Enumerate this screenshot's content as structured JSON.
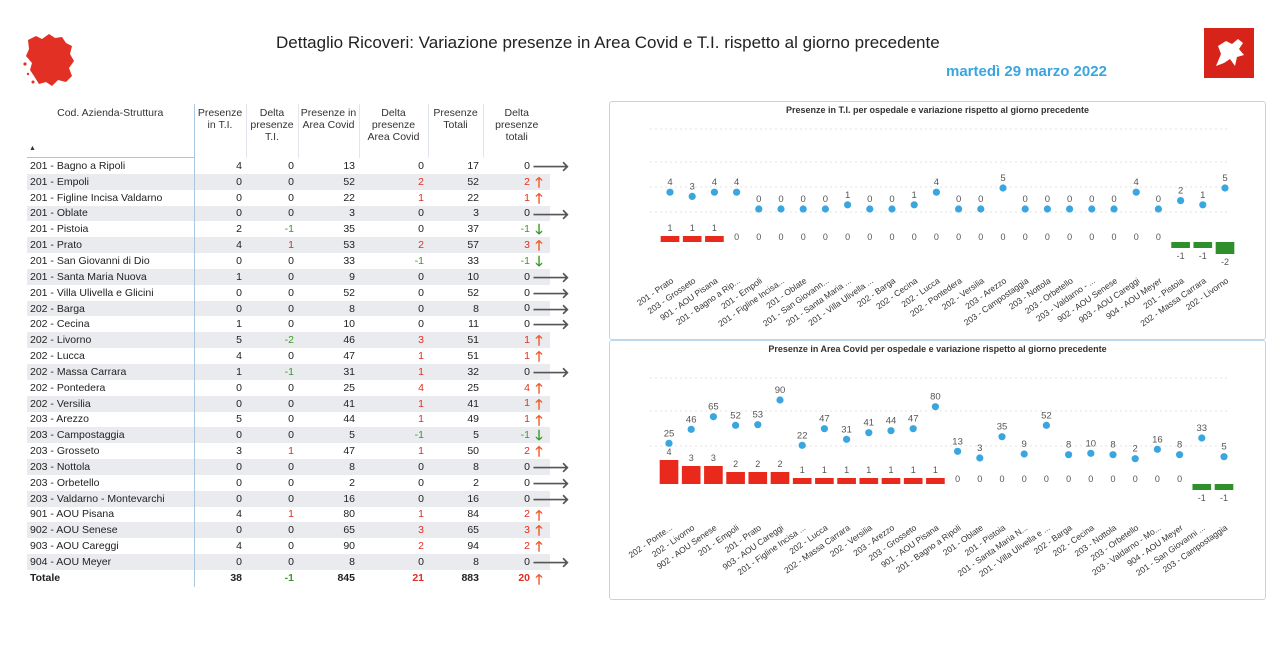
{
  "header": {
    "title": "Dettaglio Ricoveri: Variazione presenze in Area Covid e T.I. rispetto al giorno precedente",
    "date": "martedì 29 marzo 2022"
  },
  "table": {
    "columns": [
      "Cod. Azienda-Struttura",
      "Presenze in T.I.",
      "Delta presenze T.I.",
      "Presenze in Area Covid",
      "Delta presenze Area Covid",
      "Presenze Totali",
      "Delta presenze totali"
    ],
    "rows": [
      {
        "name": "201 - Bagno a Ripoli",
        "ti": "4",
        "dti": "0",
        "ac": "13",
        "dac": "0",
        "tot": "17",
        "dtot": "0",
        "dir": "right"
      },
      {
        "name": "201 - Empoli",
        "ti": "0",
        "dti": "0",
        "ac": "52",
        "dac": "2",
        "tot": "52",
        "dtot": "2",
        "dir": "up"
      },
      {
        "name": "201 - Figline Incisa Valdarno",
        "ti": "0",
        "dti": "0",
        "ac": "22",
        "dac": "1",
        "tot": "22",
        "dtot": "1",
        "dir": "up"
      },
      {
        "name": "201 - Oblate",
        "ti": "0",
        "dti": "0",
        "ac": "3",
        "dac": "0",
        "tot": "3",
        "dtot": "0",
        "dir": "right"
      },
      {
        "name": "201 - Pistoia",
        "ti": "2",
        "dti": "-1",
        "ac": "35",
        "dac": "0",
        "tot": "37",
        "dtot": "-1",
        "dir": "down"
      },
      {
        "name": "201 - Prato",
        "ti": "4",
        "dti": "1",
        "ac": "53",
        "dac": "2",
        "tot": "57",
        "dtot": "3",
        "dir": "up"
      },
      {
        "name": "201 - San Giovanni di Dio",
        "ti": "0",
        "dti": "0",
        "ac": "33",
        "dac": "-1",
        "tot": "33",
        "dtot": "-1",
        "dir": "down"
      },
      {
        "name": "201 - Santa Maria Nuova",
        "ti": "1",
        "dti": "0",
        "ac": "9",
        "dac": "0",
        "tot": "10",
        "dtot": "0",
        "dir": "right"
      },
      {
        "name": "201 - Villa Ulivella e Glicini",
        "ti": "0",
        "dti": "0",
        "ac": "52",
        "dac": "0",
        "tot": "52",
        "dtot": "0",
        "dir": "right"
      },
      {
        "name": "202 - Barga",
        "ti": "0",
        "dti": "0",
        "ac": "8",
        "dac": "0",
        "tot": "8",
        "dtot": "0",
        "dir": "right"
      },
      {
        "name": "202 - Cecina",
        "ti": "1",
        "dti": "0",
        "ac": "10",
        "dac": "0",
        "tot": "11",
        "dtot": "0",
        "dir": "right"
      },
      {
        "name": "202 - Livorno",
        "ti": "5",
        "dti": "-2",
        "ac": "46",
        "dac": "3",
        "tot": "51",
        "dtot": "1",
        "dir": "up"
      },
      {
        "name": "202 - Lucca",
        "ti": "4",
        "dti": "0",
        "ac": "47",
        "dac": "1",
        "tot": "51",
        "dtot": "1",
        "dir": "up"
      },
      {
        "name": "202 - Massa Carrara",
        "ti": "1",
        "dti": "-1",
        "ac": "31",
        "dac": "1",
        "tot": "32",
        "dtot": "0",
        "dir": "right"
      },
      {
        "name": "202 - Pontedera",
        "ti": "0",
        "dti": "0",
        "ac": "25",
        "dac": "4",
        "tot": "25",
        "dtot": "4",
        "dir": "up"
      },
      {
        "name": "202 - Versilia",
        "ti": "0",
        "dti": "0",
        "ac": "41",
        "dac": "1",
        "tot": "41",
        "dtot": "1",
        "dir": "up"
      },
      {
        "name": "203 - Arezzo",
        "ti": "5",
        "dti": "0",
        "ac": "44",
        "dac": "1",
        "tot": "49",
        "dtot": "1",
        "dir": "up"
      },
      {
        "name": "203 - Campostaggia",
        "ti": "0",
        "dti": "0",
        "ac": "5",
        "dac": "-1",
        "tot": "5",
        "dtot": "-1",
        "dir": "down"
      },
      {
        "name": "203 - Grosseto",
        "ti": "3",
        "dti": "1",
        "ac": "47",
        "dac": "1",
        "tot": "50",
        "dtot": "2",
        "dir": "up"
      },
      {
        "name": "203 - Nottola",
        "ti": "0",
        "dti": "0",
        "ac": "8",
        "dac": "0",
        "tot": "8",
        "dtot": "0",
        "dir": "right"
      },
      {
        "name": "203 - Orbetello",
        "ti": "0",
        "dti": "0",
        "ac": "2",
        "dac": "0",
        "tot": "2",
        "dtot": "0",
        "dir": "right"
      },
      {
        "name": "203 - Valdarno - Montevarchi",
        "ti": "0",
        "dti": "0",
        "ac": "16",
        "dac": "0",
        "tot": "16",
        "dtot": "0",
        "dir": "right"
      },
      {
        "name": "901 - AOU Pisana",
        "ti": "4",
        "dti": "1",
        "ac": "80",
        "dac": "1",
        "tot": "84",
        "dtot": "2",
        "dir": "up"
      },
      {
        "name": "902 - AOU Senese",
        "ti": "0",
        "dti": "0",
        "ac": "65",
        "dac": "3",
        "tot": "65",
        "dtot": "3",
        "dir": "up"
      },
      {
        "name": "903 - AOU Careggi",
        "ti": "4",
        "dti": "0",
        "ac": "90",
        "dac": "2",
        "tot": "94",
        "dtot": "2",
        "dir": "up"
      },
      {
        "name": "904 - AOU Meyer",
        "ti": "0",
        "dti": "0",
        "ac": "8",
        "dac": "0",
        "tot": "8",
        "dtot": "0",
        "dir": "right"
      }
    ],
    "total": {
      "name": "Totale",
      "ti": "38",
      "dti": "-1",
      "ac": "845",
      "dac": "21",
      "tot": "883",
      "dtot": "20",
      "dir": "up"
    }
  },
  "colors": {
    "positive": "#e8291c",
    "negative": "#2f8f2a",
    "dot": "#3aa6e0",
    "date": "#3aa6dd"
  },
  "chart_data": [
    {
      "type": "bar",
      "title": "Presenze in T.I. per ospedale e variazione rispetto al giorno precedente",
      "categories": [
        "201 - Prato",
        "203 - Grosseto",
        "901 - AOU Pisana",
        "201 - Bagno a Rip...",
        "201 - Empoli",
        "201 - Figline Incisa...",
        "201 - Oblate",
        "201 - San Giovann...",
        "201 - Santa Maria ...",
        "201 - Villa Ulivella ...",
        "202 - Barga",
        "202 - Cecina",
        "202 - Lucca",
        "202 - Pontedera",
        "202 - Versilia",
        "203 - Arezzo",
        "203 - Campostaggia",
        "203 - Nottola",
        "203 - Orbetello",
        "203 - Valdarno - ...",
        "902 - AOU Senese",
        "903 - AOU Careggi",
        "904 - AOU Meyer",
        "201 - Pistoia",
        "202 - Massa Carrara",
        "202 - Livorno"
      ],
      "series": [
        {
          "name": "Presenze",
          "kind": "scatter",
          "values": [
            4,
            3,
            4,
            4,
            0,
            0,
            0,
            0,
            1,
            0,
            0,
            1,
            4,
            0,
            0,
            5,
            0,
            0,
            0,
            0,
            0,
            4,
            0,
            2,
            1,
            5
          ]
        },
        {
          "name": "Variazione",
          "kind": "bar",
          "values": [
            1,
            1,
            1,
            0,
            0,
            0,
            0,
            0,
            0,
            0,
            0,
            0,
            0,
            0,
            0,
            0,
            0,
            0,
            0,
            0,
            0,
            0,
            0,
            -1,
            -1,
            -2
          ]
        }
      ]
    },
    {
      "type": "bar",
      "title": "Presenze in Area Covid per ospedale e variazione rispetto al giorno precedente",
      "categories": [
        "202 - Ponte...",
        "202 - Livorno",
        "902 - AOU Senese",
        "201 - Empoli",
        "201 - Prato",
        "903 - AOU Careggi",
        "201 - Figline Incisa ...",
        "202 - Lucca",
        "202 - Massa Carrara",
        "202 - Versilia",
        "203 - Arezzo",
        "203 - Grosseto",
        "901 - AOU Pisana",
        "201 - Bagno a Ripoli",
        "201 - Oblate",
        "201 - Pistoia",
        "201 - Santa Maria N...",
        "201 - Villa Ulivella e ...",
        "202 - Barga",
        "202 - Cecina",
        "203 - Nottola",
        "203 - Orbetello",
        "203 - Valdarno - Mo...",
        "904 - AOU Meyer",
        "201 - San Giovanni ...",
        "203 - Campostaggia"
      ],
      "series": [
        {
          "name": "Presenze",
          "kind": "scatter",
          "values": [
            25,
            46,
            65,
            52,
            53,
            90,
            22,
            47,
            31,
            41,
            44,
            47,
            80,
            13,
            3,
            35,
            9,
            52,
            8,
            10,
            8,
            2,
            16,
            8,
            33,
            5
          ]
        },
        {
          "name": "Variazione",
          "kind": "bar",
          "values": [
            4,
            3,
            3,
            2,
            2,
            2,
            1,
            1,
            1,
            1,
            1,
            1,
            1,
            0,
            0,
            0,
            0,
            0,
            0,
            0,
            0,
            0,
            0,
            0,
            -1,
            -1
          ]
        }
      ]
    }
  ]
}
